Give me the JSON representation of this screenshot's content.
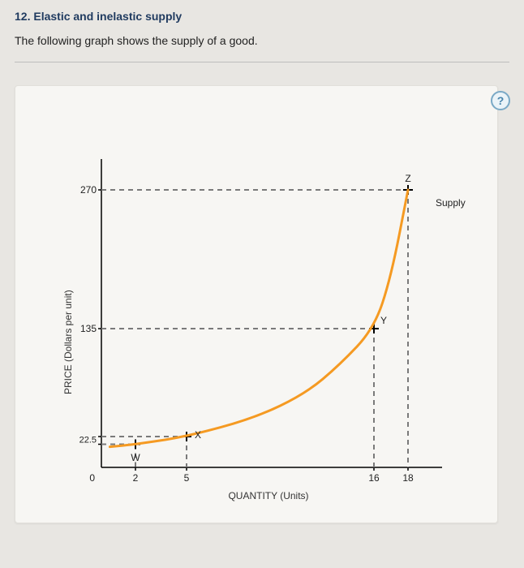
{
  "question": {
    "number_title": "12. Elastic and inelastic supply",
    "description": "The following graph shows the supply of a good."
  },
  "help_label": "?",
  "chart": {
    "type": "line",
    "xlabel": "QUANTITY (Units)",
    "ylabel": "PRICE (Dollars per unit)",
    "xlim": [
      0,
      20
    ],
    "ylim": [
      0,
      300
    ],
    "xticks": [
      2,
      5,
      16,
      18
    ],
    "yticks": [
      22.5,
      30,
      135,
      270
    ],
    "ytick_overlap": "22.5",
    "x_origin": "0",
    "background_color": "#f7f6f3",
    "axis_color": "#000000",
    "dashed_color": "#7a7a7a",
    "supply_color": "#f59a22",
    "supply_width": 3,
    "tick_dash": "6,5",
    "points": {
      "W": {
        "x": 2,
        "y": 22.5,
        "label": "W"
      },
      "X": {
        "x": 5,
        "y": 30,
        "label": "X"
      },
      "Y": {
        "x": 16,
        "y": 135,
        "label": "Y"
      },
      "Z": {
        "x": 18,
        "y": 270,
        "label": "Z"
      }
    },
    "supply_label": "Supply",
    "supply_curve": [
      {
        "x": 0.5,
        "y": 20
      },
      {
        "x": 2,
        "y": 22.5
      },
      {
        "x": 5,
        "y": 30
      },
      {
        "x": 9,
        "y": 48
      },
      {
        "x": 12,
        "y": 72
      },
      {
        "x": 14,
        "y": 100
      },
      {
        "x": 16,
        "y": 135
      },
      {
        "x": 17,
        "y": 185
      },
      {
        "x": 18,
        "y": 270
      }
    ]
  }
}
